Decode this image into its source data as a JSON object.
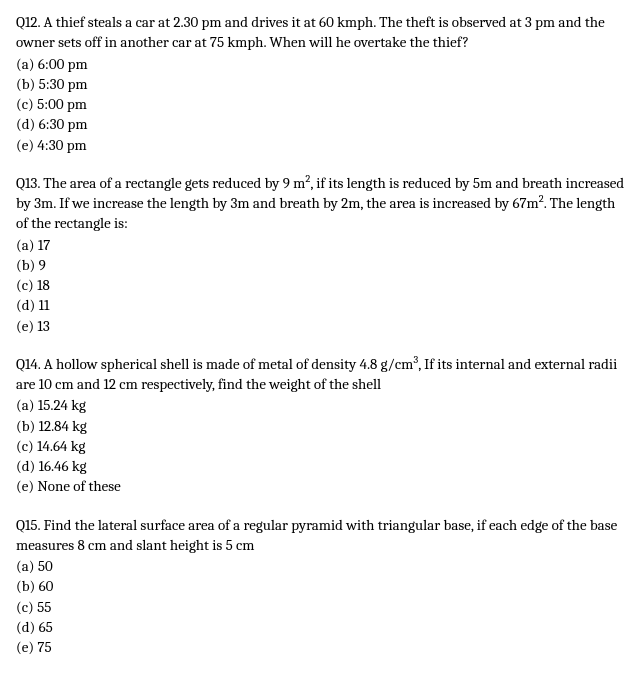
{
  "questions": [
    {
      "number": "Q12.",
      "text": "A thief steals a car at 2.30 pm and drives it at 60 kmph. The theft is observed at 3 pm and the owner sets off in another car at 75 kmph. When will he overtake the thief?",
      "options": [
        {
          "label": "(a)",
          "text": "6:00 pm"
        },
        {
          "label": "(b)",
          "text": "5:30 pm"
        },
        {
          "label": "(c)",
          "text": "5:00 pm"
        },
        {
          "label": "(d)",
          "text": "6:30 pm"
        },
        {
          "label": "(e)",
          "text": "4:30 pm"
        }
      ]
    },
    {
      "number": "Q13.",
      "text_parts": [
        "The area of a rectangle gets reduced by 9 m",
        "2",
        ",  if its length is reduced by 5m and breath increased by 3m. If we increase the length by 3m and breath by 2m, the area is increased by 67m",
        "2",
        ". The length of the rectangle is:"
      ],
      "options": [
        {
          "label": "(a)",
          "text": "17"
        },
        {
          "label": "(b)",
          "text": "9"
        },
        {
          "label": "(c)",
          "text": "18"
        },
        {
          "label": "(d)",
          "text": "11"
        },
        {
          "label": "(e)",
          "text": "13"
        }
      ]
    },
    {
      "number": "Q14.",
      "text_parts": [
        "A hollow spherical shell is made of metal of density 4.8 g/cm",
        "3",
        ", If its internal and external radii are 10 cm and 12 cm respectively, find the weight of the shell"
      ],
      "options": [
        {
          "label": "(a)",
          "text": "15.24 kg"
        },
        {
          "label": "(b)",
          "text": "12.84 kg"
        },
        {
          "label": "(c)",
          "text": "14.64 kg"
        },
        {
          "label": "(d)",
          "text": "16.46 kg"
        },
        {
          "label": "(e)",
          "text": "None of these"
        }
      ]
    },
    {
      "number": "Q15.",
      "text": "Find the lateral surface area of a regular pyramid with triangular base, if each edge of the base measures 8 cm and slant height is 5 cm",
      "options": [
        {
          "label": "(a)",
          "text": "50"
        },
        {
          "label": "(b)",
          "text": "60"
        },
        {
          "label": "(c)",
          "text": "55"
        },
        {
          "label": "(d)",
          "text": "65"
        },
        {
          "label": "(e)",
          "text": "75"
        }
      ]
    }
  ]
}
